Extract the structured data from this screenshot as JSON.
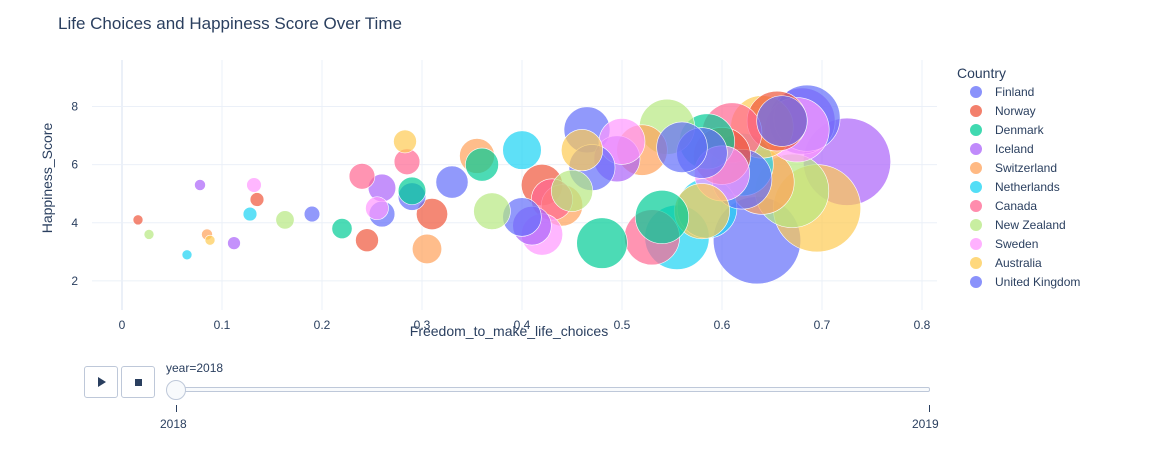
{
  "chart_data": {
    "type": "scatter",
    "title": "Life Choices and Happiness Score Over Time",
    "xlabel": "Freedom_to_make_life_choices",
    "ylabel": "Happiness_Score",
    "xlim": [
      -0.03,
      0.815
    ],
    "ylim": [
      1.0,
      9.6
    ],
    "x_ticks": [
      0,
      0.1,
      0.2,
      0.3,
      0.4,
      0.5,
      0.6,
      0.7,
      0.8
    ],
    "x_tick_labels": [
      "0",
      "0.1",
      "0.2",
      "0.3",
      "0.4",
      "0.5",
      "0.6",
      "0.7",
      "0.8"
    ],
    "y_ticks": [
      2,
      4,
      6,
      8
    ],
    "y_tick_labels": [
      "2",
      "4",
      "6",
      "8"
    ],
    "grid": true,
    "legend_title": "Country",
    "legend_position": "right",
    "series": [
      {
        "name": "Finland",
        "color": "#636efa",
        "points": [
          [
            0.19,
            4.3,
            0.17
          ],
          [
            0.465,
            7.2,
            0.5
          ],
          [
            0.29,
            4.9,
            0.3
          ],
          [
            0.58,
            6.4,
            0.55
          ],
          [
            0.635,
            3.4,
            0.95
          ],
          [
            0.66,
            7.5,
            0.55
          ]
        ]
      },
      {
        "name": "Norway",
        "color": "#ef553b",
        "points": [
          [
            0.016,
            4.1,
            0.05
          ],
          [
            0.135,
            4.8,
            0.15
          ],
          [
            0.245,
            3.4,
            0.25
          ],
          [
            0.31,
            4.3,
            0.34
          ],
          [
            0.42,
            5.3,
            0.45
          ],
          [
            0.6,
            6.3,
            0.62
          ],
          [
            0.655,
            7.5,
            0.65
          ]
        ]
      },
      {
        "name": "Denmark",
        "color": "#00cc96",
        "points": [
          [
            0.22,
            3.8,
            0.22
          ],
          [
            0.29,
            5.1,
            0.3
          ],
          [
            0.36,
            6.0,
            0.36
          ],
          [
            0.48,
            3.3,
            0.55
          ],
          [
            0.54,
            4.2,
            0.58
          ],
          [
            0.585,
            6.8,
            0.6
          ]
        ]
      },
      {
        "name": "Iceland",
        "color": "#ab63fa",
        "points": [
          [
            0.078,
            5.3,
            0.12
          ],
          [
            0.112,
            3.3,
            0.14
          ],
          [
            0.26,
            5.2,
            0.3
          ],
          [
            0.41,
            3.9,
            0.42
          ],
          [
            0.495,
            6.2,
            0.5
          ],
          [
            0.725,
            6.1,
            0.95
          ],
          [
            0.68,
            7.5,
            0.72
          ]
        ]
      },
      {
        "name": "Switzerland",
        "color": "#ffa15a",
        "points": [
          [
            0.085,
            3.6,
            0.12
          ],
          [
            0.305,
            3.1,
            0.32
          ],
          [
            0.355,
            6.3,
            0.38
          ],
          [
            0.44,
            4.6,
            0.45
          ],
          [
            0.52,
            6.5,
            0.55
          ],
          [
            0.64,
            5.4,
            0.7
          ]
        ]
      },
      {
        "name": "Netherlands",
        "color": "#19d3f3",
        "points": [
          [
            0.065,
            2.9,
            0.1
          ],
          [
            0.128,
            4.3,
            0.15
          ],
          [
            0.4,
            6.5,
            0.42
          ],
          [
            0.555,
            3.5,
            0.7
          ],
          [
            0.585,
            4.5,
            0.65
          ],
          [
            0.62,
            6.0,
            0.68
          ]
        ]
      },
      {
        "name": "Canada",
        "color": "#ff6692",
        "points": [
          [
            0.24,
            5.6,
            0.28
          ],
          [
            0.285,
            6.1,
            0.28
          ],
          [
            0.43,
            4.8,
            0.45
          ],
          [
            0.53,
            3.5,
            0.6
          ],
          [
            0.61,
            7.1,
            0.65
          ]
        ]
      },
      {
        "name": "New Zealand",
        "color": "#b6e880",
        "points": [
          [
            0.027,
            3.6,
            0.07
          ],
          [
            0.163,
            4.1,
            0.2
          ],
          [
            0.37,
            4.4,
            0.4
          ],
          [
            0.45,
            5.1,
            0.45
          ],
          [
            0.545,
            7.3,
            0.6
          ],
          [
            0.67,
            5.1,
            0.8
          ]
        ]
      },
      {
        "name": "Sweden",
        "color": "#ff97ff",
        "points": [
          [
            0.132,
            5.3,
            0.16
          ],
          [
            0.255,
            4.5,
            0.25
          ],
          [
            0.42,
            3.6,
            0.45
          ],
          [
            0.5,
            6.8,
            0.5
          ],
          [
            0.6,
            5.7,
            0.6
          ],
          [
            0.675,
            7.2,
            0.7
          ]
        ]
      },
      {
        "name": "Australia",
        "color": "#fecb52",
        "points": [
          [
            0.088,
            3.4,
            0.1
          ],
          [
            0.283,
            6.8,
            0.25
          ],
          [
            0.46,
            6.5,
            0.45
          ],
          [
            0.58,
            4.4,
            0.6
          ],
          [
            0.64,
            7.3,
            0.68
          ],
          [
            0.695,
            4.5,
            0.95
          ]
        ]
      },
      {
        "name": "United Kingdom",
        "color": "#636efa",
        "points": [
          [
            0.26,
            4.3,
            0.28
          ],
          [
            0.33,
            5.4,
            0.35
          ],
          [
            0.4,
            4.2,
            0.42
          ],
          [
            0.47,
            5.9,
            0.5
          ],
          [
            0.56,
            6.6,
            0.55
          ],
          [
            0.62,
            5.5,
            0.65
          ],
          [
            0.685,
            7.6,
            0.72
          ]
        ]
      }
    ]
  },
  "animation": {
    "play_label": "play",
    "stop_label": "stop",
    "current_label": "year=2018",
    "steps": [
      "2018",
      "2019"
    ],
    "current_index": 0
  }
}
